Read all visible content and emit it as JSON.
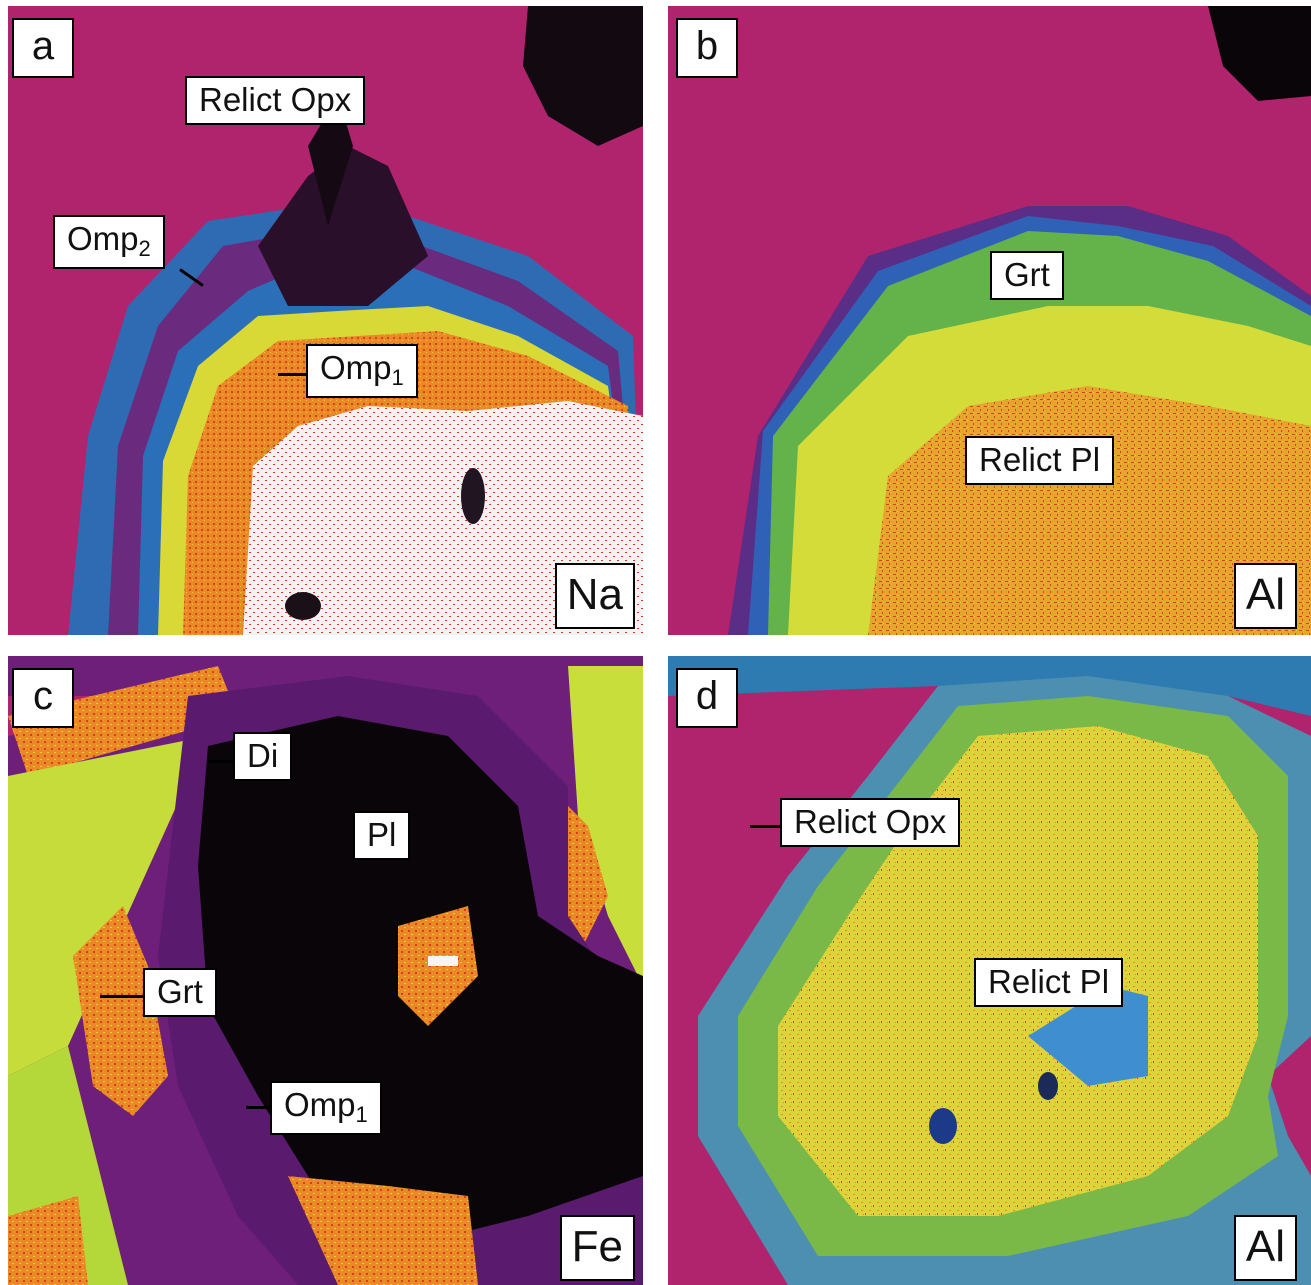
{
  "panels": {
    "a": {
      "letter": "a",
      "element": "Na",
      "labels": {
        "relict_opx": "Relict Opx",
        "omp2_base": "Omp",
        "omp2_sub": "2",
        "omp1_base": "Omp",
        "omp1_sub": "1"
      }
    },
    "b": {
      "letter": "b",
      "element": "Al",
      "labels": {
        "grt": "Grt",
        "relict_pl": "Relict Pl"
      }
    },
    "c": {
      "letter": "c",
      "element": "Fe",
      "labels": {
        "di": "Di",
        "pl": "Pl",
        "grt": "Grt",
        "omp1_base": "Omp",
        "omp1_sub": "1"
      }
    },
    "d": {
      "letter": "d",
      "element": "Al",
      "labels": {
        "relict_opx": "Relict Opx",
        "relict_pl": "Relict Pl"
      }
    }
  },
  "colors": {
    "matrix_magenta": "#b0246e",
    "rim_blue": "#2b6fb8",
    "core_yellow": "#d8e23a",
    "core_orange": "#e8862a",
    "high_white": "#f6f6f6",
    "void_black": "#0a0508"
  }
}
